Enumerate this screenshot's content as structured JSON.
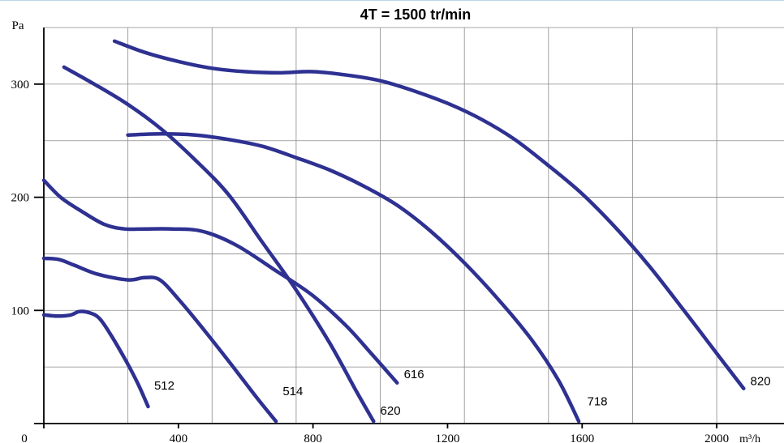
{
  "chart_data": {
    "type": "line",
    "title": "4T = 1500 tr/min",
    "ylabel": "Pa",
    "xlabel": "m³/h",
    "xlim": [
      0,
      2200
    ],
    "ylim": [
      0,
      350
    ],
    "x_ticks": [
      {
        "value": 0,
        "label": "0"
      },
      {
        "value": 400,
        "label": "400"
      },
      {
        "value": 800,
        "label": "800"
      },
      {
        "value": 1200,
        "label": "1200"
      },
      {
        "value": 1600,
        "label": "1600"
      },
      {
        "value": 2000,
        "label": "2000"
      }
    ],
    "x_unit_label": "m³/h",
    "y_ticks": [
      {
        "value": 100,
        "label": "100"
      },
      {
        "value": 200,
        "label": "200"
      },
      {
        "value": 300,
        "label": "300"
      }
    ],
    "x_gridlines": [
      0,
      250,
      500,
      750,
      1000,
      1250,
      1500,
      1750,
      2000
    ],
    "y_gridlines": [
      50,
      100,
      150,
      200,
      250,
      300,
      350
    ],
    "grid": true,
    "line_color": "#2e3191",
    "series": [
      {
        "name": "512",
        "points": [
          [
            0,
            96
          ],
          [
            40,
            95
          ],
          [
            80,
            96
          ],
          [
            105,
            99
          ],
          [
            135,
            98
          ],
          [
            165,
            93
          ],
          [
            200,
            78
          ],
          [
            245,
            55
          ],
          [
            280,
            35
          ],
          [
            310,
            15
          ]
        ]
      },
      {
        "name": "514",
        "points": [
          [
            0,
            146
          ],
          [
            45,
            145
          ],
          [
            90,
            140
          ],
          [
            160,
            132
          ],
          [
            250,
            127
          ],
          [
            300,
            129
          ],
          [
            345,
            127
          ],
          [
            400,
            110
          ],
          [
            470,
            85
          ],
          [
            550,
            55
          ],
          [
            630,
            24
          ],
          [
            690,
            2
          ]
        ]
      },
      {
        "name": "616",
        "points": [
          [
            0,
            215
          ],
          [
            50,
            200
          ],
          [
            110,
            188
          ],
          [
            180,
            176
          ],
          [
            240,
            172
          ],
          [
            300,
            172
          ],
          [
            380,
            172
          ],
          [
            470,
            170
          ],
          [
            570,
            158
          ],
          [
            680,
            137
          ],
          [
            800,
            113
          ],
          [
            900,
            86
          ],
          [
            970,
            63
          ],
          [
            1050,
            36
          ]
        ]
      },
      {
        "name": "620",
        "points": [
          [
            60,
            315
          ],
          [
            150,
            300
          ],
          [
            250,
            282
          ],
          [
            350,
            260
          ],
          [
            450,
            233
          ],
          [
            550,
            202
          ],
          [
            650,
            160
          ],
          [
            750,
            118
          ],
          [
            850,
            71
          ],
          [
            930,
            28
          ],
          [
            980,
            2
          ]
        ]
      },
      {
        "name": "718",
        "points": [
          [
            250,
            255
          ],
          [
            350,
            256
          ],
          [
            450,
            255
          ],
          [
            550,
            251
          ],
          [
            650,
            245
          ],
          [
            750,
            235
          ],
          [
            850,
            224
          ],
          [
            950,
            210
          ],
          [
            1050,
            193
          ],
          [
            1150,
            170
          ],
          [
            1250,
            142
          ],
          [
            1350,
            110
          ],
          [
            1450,
            74
          ],
          [
            1530,
            38
          ],
          [
            1590,
            2
          ]
        ]
      },
      {
        "name": "820",
        "points": [
          [
            210,
            338
          ],
          [
            300,
            328
          ],
          [
            400,
            320
          ],
          [
            500,
            314
          ],
          [
            600,
            311
          ],
          [
            700,
            310
          ],
          [
            800,
            311
          ],
          [
            900,
            308
          ],
          [
            1000,
            303
          ],
          [
            1100,
            294
          ],
          [
            1200,
            283
          ],
          [
            1300,
            269
          ],
          [
            1400,
            251
          ],
          [
            1500,
            228
          ],
          [
            1600,
            203
          ],
          [
            1700,
            173
          ],
          [
            1800,
            139
          ],
          [
            1900,
            101
          ],
          [
            2000,
            62
          ],
          [
            2080,
            31
          ]
        ]
      }
    ],
    "labels": [
      {
        "name": "512",
        "x": 328,
        "y": 30
      },
      {
        "name": "514",
        "x": 710,
        "y": 25
      },
      {
        "name": "616",
        "x": 1070,
        "y": 40
      },
      {
        "name": "620",
        "x": 1000,
        "y": 8
      },
      {
        "name": "718",
        "x": 1615,
        "y": 16
      },
      {
        "name": "820",
        "x": 2100,
        "y": 34
      }
    ]
  }
}
